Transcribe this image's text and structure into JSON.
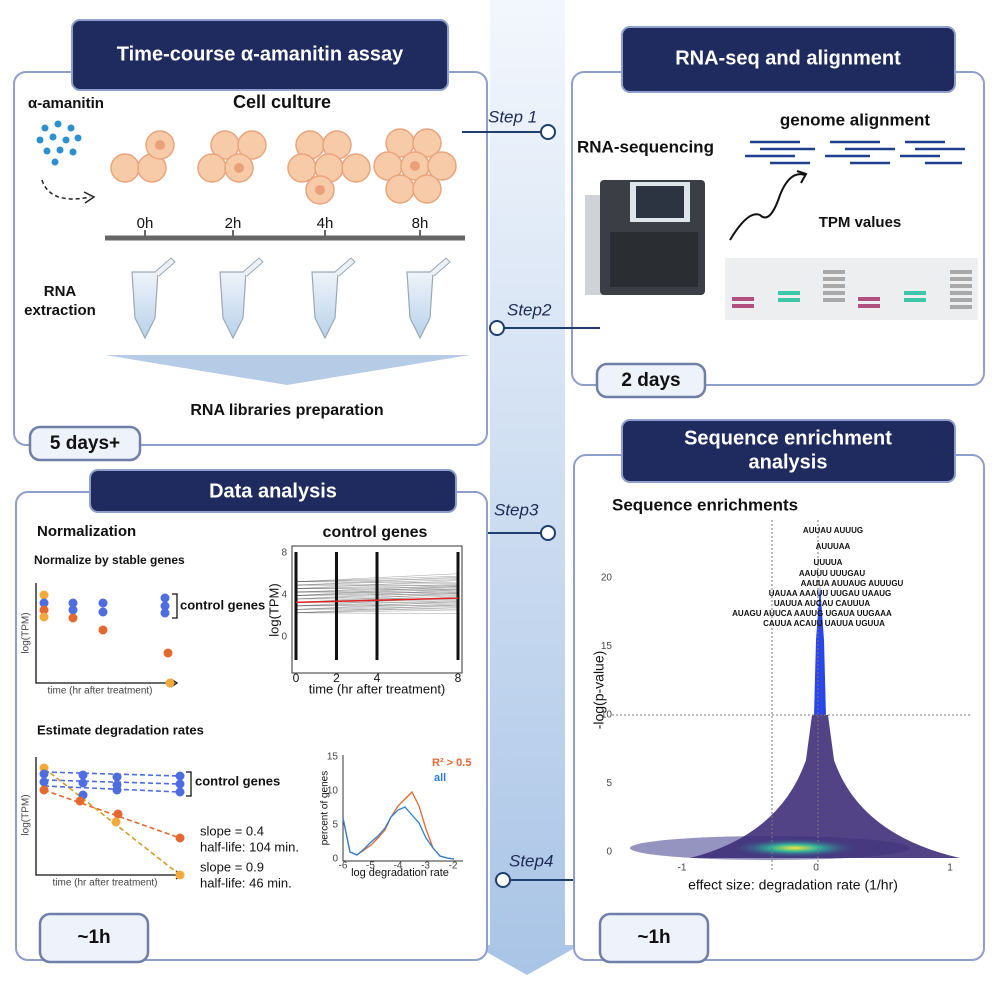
{
  "assay": {
    "title": "Time-course α-amanitin assay",
    "reagent": "α-amanitin",
    "culture": "Cell culture",
    "timepoints": [
      "0h",
      "2h",
      "4h",
      "8h"
    ],
    "extraction": [
      "RNA",
      "extraction"
    ],
    "libraries": "RNA libraries preparation",
    "duration": "5 days+"
  },
  "sequencing": {
    "title": "RNA-seq and alignment",
    "sequencing": "RNA-sequencing",
    "alignment": "genome alignment",
    "tpm": "TPM values",
    "duration": "2 days"
  },
  "steps": [
    "Step 1",
    "Step2",
    "Step3",
    "Step4"
  ],
  "analysis": {
    "title": "Data analysis",
    "normalization": "Normalization",
    "normalize_label": "Normalize by stable genes",
    "control_genes": "control genes",
    "ylabel": "log(TPM)",
    "xlabel": "time (hr after treatment)",
    "control_plot": {
      "title": "control genes",
      "ylabel": "log(TPM)",
      "xlabel": "time (hr after treatment)",
      "xticks": [
        0,
        2,
        4,
        8
      ],
      "yticks": [
        0,
        4,
        8
      ]
    },
    "estimate": "Estimate degradation rates",
    "estimate_control": "control genes",
    "estimate_ylabel": "log(TPM)",
    "estimate_xlabel": "time (hr after treatment)",
    "slope1": "slope = 0.4",
    "halflife1": "half-life: 104 min.",
    "slope2": "slope = 0.9",
    "halflife2": "half-life: 46 min.",
    "hist_plot": {
      "ylabel": "percent of genes",
      "xlabel": "log degradation rate",
      "yticks": [
        0,
        5,
        10,
        15
      ],
      "xticks": [
        -6,
        -5,
        -4,
        -3,
        -2
      ],
      "legend": [
        "R² > 0.5",
        "all"
      ]
    },
    "duration": "~1h"
  },
  "enrichment": {
    "title": [
      "Sequence enrichment",
      "analysis"
    ],
    "plot_title": "Sequence enrichments",
    "ylabel": "-log(p-value)",
    "xlabel": "effect size: degradation rate (1/hr)",
    "yticks": [
      0,
      5,
      10,
      15,
      20
    ],
    "xticks": [
      -1,
      0,
      1
    ],
    "motifs": [
      "AUUAU AUUUG",
      "AUUUAA",
      "UUUUA",
      "AAUUU UUUGAU",
      "AAUUA   AUUAUG AUUUGU",
      "UAUAA AAAUU UUGAU UAAUG",
      "UAUUA AUCAU   CAUUUA",
      "AUAGU AUUCA AAUUG UGAUA UUGAAA",
      "CAUUA ACAUU   UAUUA UGUUA"
    ],
    "duration": "~1h"
  }
}
